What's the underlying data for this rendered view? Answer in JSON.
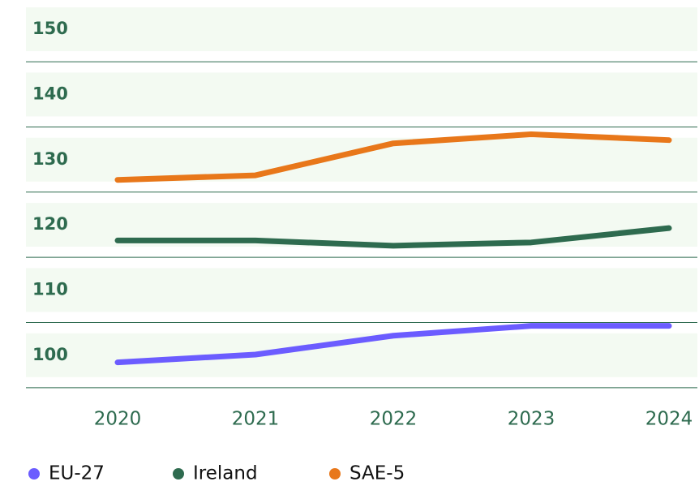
{
  "chart_data": {
    "type": "line",
    "categories": [
      "2020",
      "2021",
      "2022",
      "2023",
      "2024"
    ],
    "series": [
      {
        "name": "EU-27",
        "color": "#6b5cff",
        "values": [
          98.9,
          100.1,
          103,
          104.5,
          104.5
        ]
      },
      {
        "name": "Ireland",
        "color": "#2e6b4f",
        "values": [
          117.6,
          117.6,
          116.8,
          117.3,
          119.5
        ]
      },
      {
        "name": "SAE-5",
        "color": "#e8771a",
        "values": [
          126.9,
          127.6,
          132.5,
          133.9,
          133
        ]
      }
    ],
    "ylim": [
      95,
      153
    ],
    "yticks": [
      100,
      110,
      120,
      130,
      140,
      150
    ],
    "grid": true
  }
}
